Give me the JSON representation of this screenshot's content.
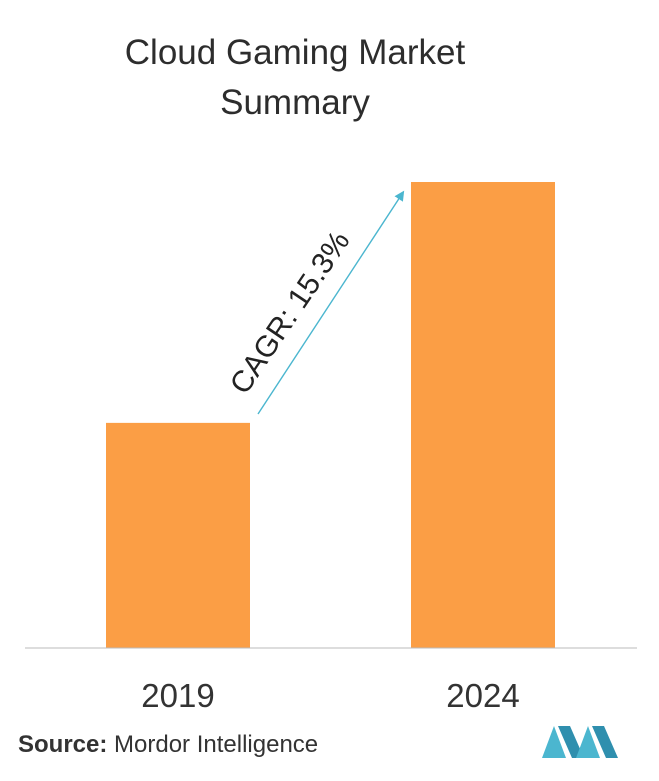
{
  "title": "Cloud Gaming Market Summary",
  "annotation": {
    "cagr_label": "CAGR: 15.3%"
  },
  "source": {
    "label": "Source:",
    "text": "Mordor Intelligence"
  },
  "colors": {
    "bar": "#FB9E45",
    "arrow": "#4BB6CF",
    "axis": "#bbbbbb",
    "logo": "#4BB6CF"
  },
  "chart_data": {
    "type": "bar",
    "title": "Cloud Gaming Market Summary",
    "categories": [
      "2019",
      "2024"
    ],
    "values": [
      1.0,
      2.07
    ],
    "xlabel": "",
    "ylabel": "",
    "grid": false,
    "legend": "none",
    "annotations": [
      "CAGR: 15.3%"
    ]
  }
}
